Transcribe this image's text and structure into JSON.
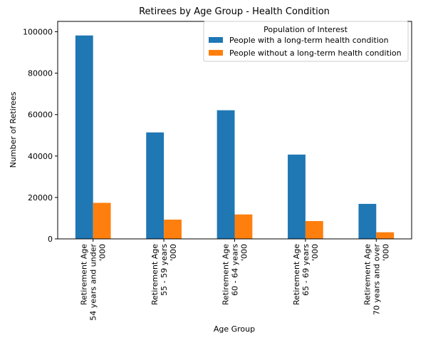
{
  "chart_data": {
    "type": "bar",
    "title": "Retirees by Age Group - Health Condition",
    "xlabel": "Age Group",
    "ylabel": "Number of Retirees",
    "ylim": [
      0,
      105000
    ],
    "yticks": [
      0,
      20000,
      40000,
      60000,
      80000,
      100000
    ],
    "categories": [
      [
        "Retirement Age",
        "54 years and under",
        "'000"
      ],
      [
        "Retirement Age",
        "55 - 59 years",
        "'000"
      ],
      [
        "Retirement Age",
        "60 - 64 years",
        "'000"
      ],
      [
        "Retirement Age",
        "65 - 69 years",
        "'000"
      ],
      [
        "Retirement Age",
        "70 years and over",
        "'000"
      ]
    ],
    "legend": {
      "title": "Population of Interest",
      "placement": "top-right"
    },
    "series": [
      {
        "name": "People with a long-term health condition",
        "color": "#1f77b4",
        "values": [
          98200,
          51400,
          62100,
          40700,
          16900
        ]
      },
      {
        "name": "People without a long-term health condition",
        "color": "#ff7f0e",
        "values": [
          17400,
          9300,
          11800,
          8600,
          3200
        ]
      }
    ],
    "grid": false
  }
}
